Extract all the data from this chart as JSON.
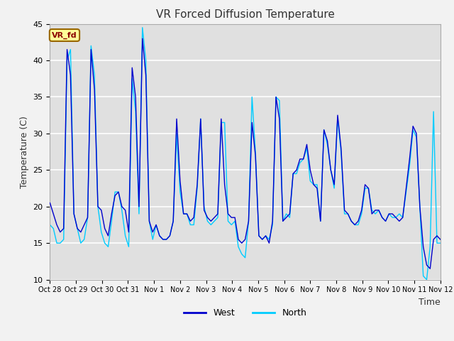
{
  "title": "VR Forced Diffusion Temperature",
  "xlabel": "Time",
  "ylabel": "Temperature (C)",
  "ylim": [
    10,
    45
  ],
  "annotation_label": "VR_fd",
  "legend_entries": [
    "West",
    "North"
  ],
  "west_color": "#0000CC",
  "north_color": "#00CCFF",
  "fig_bg": "#F2F2F2",
  "plot_bg": "#E0E0E0",
  "grid_color": "white",
  "x_tick_labels": [
    "Oct 28",
    "Oct 29",
    "Oct 30",
    "Oct 31",
    "Nov 1",
    "Nov 2",
    "Nov 3",
    "Nov 4",
    "Nov 5",
    "Nov 6",
    "Nov 7",
    "Nov 8",
    "Nov 9",
    "Nov 10",
    "Nov 11",
    "Nov 12"
  ],
  "west_data": [
    20.5,
    19.0,
    17.5,
    16.5,
    17.0,
    41.5,
    38.0,
    19.0,
    17.0,
    16.5,
    17.5,
    18.5,
    41.5,
    36.0,
    20.0,
    19.5,
    17.0,
    16.0,
    19.0,
    21.5,
    22.0,
    20.0,
    19.5,
    16.5,
    39.0,
    35.0,
    20.0,
    43.0,
    38.0,
    18.0,
    16.5,
    17.5,
    16.0,
    15.5,
    15.5,
    16.0,
    18.0,
    32.0,
    23.5,
    19.0,
    19.0,
    18.0,
    18.5,
    23.0,
    32.0,
    19.5,
    18.5,
    18.0,
    18.5,
    19.0,
    32.0,
    23.0,
    19.0,
    18.5,
    18.5,
    15.5,
    15.0,
    15.5,
    18.0,
    31.5,
    27.0,
    16.0,
    15.5,
    16.0,
    15.0,
    18.0,
    35.0,
    32.0,
    18.0,
    18.5,
    19.0,
    24.5,
    25.0,
    26.5,
    26.5,
    28.5,
    25.0,
    23.0,
    22.5,
    18.0,
    30.5,
    29.0,
    25.0,
    23.0,
    32.5,
    28.0,
    19.5,
    19.0,
    18.0,
    17.5,
    18.0,
    19.5,
    23.0,
    22.5,
    19.0,
    19.5,
    19.5,
    18.5,
    18.0,
    19.0,
    19.0,
    18.5,
    18.0,
    18.5,
    22.5,
    26.5,
    31.0,
    30.0,
    20.0,
    14.5,
    12.0,
    11.5,
    15.5,
    16.0,
    15.5
  ],
  "north_data": [
    17.5,
    17.0,
    15.0,
    15.0,
    15.5,
    40.0,
    41.5,
    19.0,
    17.0,
    15.0,
    15.5,
    18.5,
    42.0,
    38.0,
    20.0,
    16.5,
    15.0,
    14.5,
    18.0,
    22.0,
    22.0,
    19.5,
    16.0,
    14.5,
    37.5,
    33.0,
    19.0,
    44.5,
    40.0,
    18.0,
    15.5,
    17.5,
    16.0,
    15.5,
    15.5,
    16.0,
    18.0,
    30.0,
    22.0,
    19.0,
    19.0,
    17.5,
    17.5,
    22.5,
    32.0,
    20.0,
    18.0,
    17.5,
    18.0,
    18.5,
    31.5,
    31.5,
    18.0,
    17.5,
    18.0,
    14.5,
    13.5,
    13.0,
    18.0,
    35.0,
    27.5,
    16.0,
    15.5,
    16.0,
    15.5,
    17.5,
    35.0,
    34.5,
    18.0,
    19.0,
    18.5,
    24.5,
    24.5,
    26.0,
    26.5,
    28.0,
    23.5,
    23.0,
    23.0,
    18.0,
    30.5,
    28.5,
    25.0,
    22.5,
    32.0,
    27.5,
    19.0,
    19.0,
    18.0,
    17.5,
    17.5,
    19.0,
    22.5,
    22.5,
    19.5,
    19.0,
    19.5,
    18.5,
    18.0,
    19.0,
    18.5,
    18.5,
    19.0,
    18.5,
    22.0,
    25.5,
    30.5,
    29.5,
    20.0,
    10.5,
    10.0,
    14.5,
    33.0,
    15.0,
    15.0
  ]
}
